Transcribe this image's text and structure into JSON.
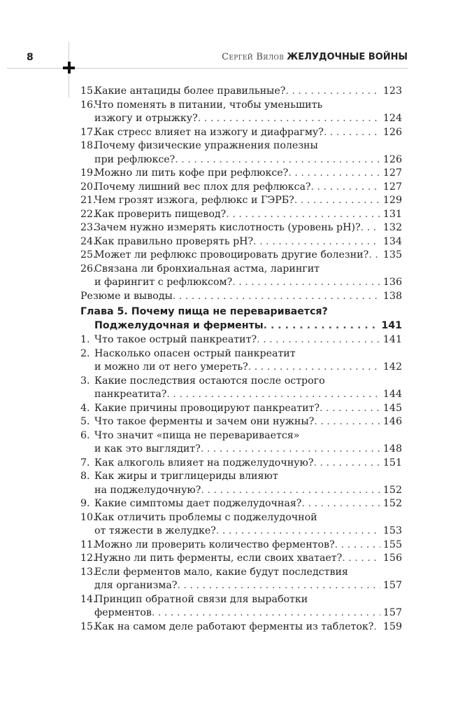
{
  "header": {
    "page_number": "8",
    "author": "Сергей Вялов",
    "book_title": "ЖЕЛУДОЧНЫЕ ВОЙНЫ"
  },
  "toc": [
    {
      "num": "15.",
      "lines": [
        "Какие антациды более правильные?"
      ],
      "page": "123"
    },
    {
      "num": "16.",
      "lines": [
        "Что поменять в питании, чтобы уменьшить",
        "изжогу и отрыжку?"
      ],
      "page": "124"
    },
    {
      "num": "17.",
      "lines": [
        "Как стресс влияет на изжогу и диафрагму?"
      ],
      "page": "126"
    },
    {
      "num": "18.",
      "lines": [
        "Почему физические упражнения полезны",
        "при рефлюксе?"
      ],
      "page": "126"
    },
    {
      "num": "19.",
      "lines": [
        "Можно ли пить кофе при рефлюксе?"
      ],
      "page": "127"
    },
    {
      "num": "20.",
      "lines": [
        "Почему лишний вес плох для рефлюкса?"
      ],
      "page": "127"
    },
    {
      "num": "21.",
      "lines": [
        "Чем грозят изжога, рефлюкс и ГЭРБ?"
      ],
      "page": "129"
    },
    {
      "num": "22.",
      "lines": [
        "Как проверить пищевод?"
      ],
      "page": "131"
    },
    {
      "num": "23.",
      "lines": [
        "Зачем нужно измерять кислотность (уровень pH)?"
      ],
      "page": "132"
    },
    {
      "num": "24.",
      "lines": [
        "Как правильно проверять pH?"
      ],
      "page": "134"
    },
    {
      "num": "25.",
      "lines": [
        "Может ли рефлюкс провоцировать другие болезни?"
      ],
      "page": "135"
    },
    {
      "num": "26.",
      "lines": [
        "Связана ли бронхиальная астма, ларингит",
        "и фарингит с рефлюксом?"
      ],
      "page": "136"
    },
    {
      "num": "",
      "lines": [
        "Резюме и выводы"
      ],
      "page": "138"
    },
    {
      "num": "",
      "chapter": true,
      "lines": [
        "Глава 5. Почему пища не переваривается?",
        "Поджелудочная и ферменты"
      ],
      "page": "141"
    },
    {
      "num": "1.",
      "lines": [
        "Что такое острый панкреатит?"
      ],
      "page": "141"
    },
    {
      "num": "2.",
      "lines": [
        "Насколько опасен острый панкреатит",
        "и можно ли от него умереть?"
      ],
      "page": "142"
    },
    {
      "num": "3.",
      "lines": [
        "Какие последствия остаются после острого",
        "панкреатита?"
      ],
      "page": "144"
    },
    {
      "num": "4.",
      "lines": [
        "Какие причины провоцируют панкреатит?"
      ],
      "page": "145"
    },
    {
      "num": "5.",
      "lines": [
        "Что такое ферменты и зачем они нужны?"
      ],
      "page": "146"
    },
    {
      "num": "6.",
      "lines": [
        "Что значит «пища не переваривается»",
        "и как это выглядит?"
      ],
      "page": "148"
    },
    {
      "num": "7.",
      "lines": [
        "Как алкоголь влияет на поджелудочную?"
      ],
      "page": "151"
    },
    {
      "num": "8.",
      "lines": [
        "Как жиры и триглицериды влияют",
        "на поджелудочную?"
      ],
      "page": "152"
    },
    {
      "num": "9.",
      "lines": [
        "Какие симптомы дает поджелудочная?"
      ],
      "page": "152"
    },
    {
      "num": "10.",
      "lines": [
        "Как отличить проблемы с поджелудочной",
        "от тяжести в желудке?"
      ],
      "page": "153"
    },
    {
      "num": "11.",
      "lines": [
        "Можно ли проверить количество ферментов?"
      ],
      "page": "155"
    },
    {
      "num": "12.",
      "lines": [
        "Нужно ли пить ферменты, если своих хватает?"
      ],
      "page": "156"
    },
    {
      "num": "13.",
      "lines": [
        "Если ферментов мало, какие будут последствия",
        "для организма?"
      ],
      "page": "157"
    },
    {
      "num": "14.",
      "lines": [
        "Принцип обратной связи для выработки",
        "ферментов"
      ],
      "page": "157"
    },
    {
      "num": "15.",
      "lines": [
        "Как на самом деле работают ферменты из таблеток?"
      ],
      "page": "159"
    }
  ]
}
